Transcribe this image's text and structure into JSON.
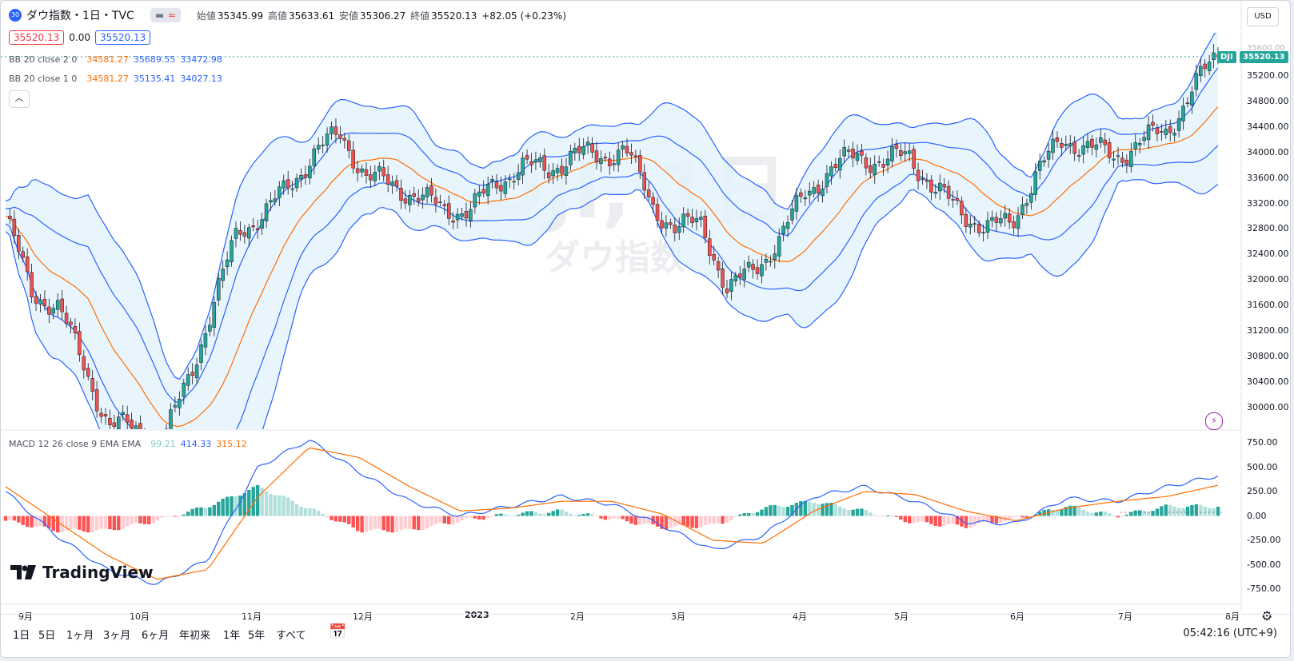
{
  "header": {
    "badge": "30",
    "symbol": "ダウ指数・1日・TVC",
    "ohlc": {
      "open_label": "始値",
      "open": "35345.99",
      "high_label": "高値",
      "high": "35633.61",
      "low_label": "安値",
      "low": "35306.27",
      "close_label": "終値",
      "close": "35520.13",
      "change": "+82.05 (+0.23%)"
    },
    "toggle_icon": "minus-icon",
    "toggle_icon2": "approx-icon",
    "currency": "USD",
    "quote_sell": "35520.13",
    "quote_spread": "0.00",
    "quote_buy": "35520.13"
  },
  "indicators": {
    "bb2": {
      "label": "BB 20 close 2 0",
      "basis": "34581.27",
      "upper": "35689.55",
      "lower": "33472.98"
    },
    "bb1": {
      "label": "BB 20 close 1 0",
      "basis": "34581.27",
      "upper": "35135.41",
      "lower": "34027.13"
    },
    "macd": {
      "label": "MACD 12 26 close 9 EMA EMA",
      "hist": "99.21",
      "macd": "414.33",
      "signal": "315.12"
    }
  },
  "price_axis": [
    "35200.00",
    "34800.00",
    "34400.00",
    "34000.00",
    "33600.00",
    "33200.00",
    "32800.00",
    "32400.00",
    "32000.00",
    "31600.00",
    "31200.00",
    "30800.00",
    "30400.00",
    "30000.00"
  ],
  "price_tag": {
    "symbol": "DJI",
    "value": "35520.13",
    "partial_top": "35600.00"
  },
  "macd_axis": [
    "750.00",
    "500.00",
    "250.00",
    "0.00",
    "-250.00",
    "-500.00",
    "-750.00"
  ],
  "time_axis": [
    "9月",
    "10月",
    "11月",
    "12月",
    "2023",
    "2月",
    "3月",
    "4月",
    "5月",
    "6月",
    "7月",
    "8月"
  ],
  "watermark": {
    "big": "DJI, 1日",
    "small": "ダウ指数"
  },
  "logo": {
    "text": "TradingView"
  },
  "bottombar": {
    "timeframes": [
      "1日",
      "5日",
      "1ヶ月",
      "3ヶ月",
      "6ヶ月",
      "年初来",
      "1年",
      "5年",
      "すべて"
    ],
    "clock": "05:42:16 (UTC+9)"
  },
  "colors": {
    "up": "#26a69a",
    "down": "#ef5350",
    "bb_band": "#2962ff",
    "basis": "#ff6d00",
    "fill": "#e3f2fd"
  },
  "icons": [
    "calendar-range-icon",
    "settings-gear-icon",
    "lightning-icon",
    "chevron-up-icon"
  ],
  "chart_data": [
    {
      "type": "candlestick",
      "title": "ダウ指数・1日・TVC",
      "ylim": [
        29800,
        35700
      ],
      "x_ticks": [
        "9月",
        "10月",
        "11月",
        "12月",
        "2023",
        "2月",
        "3月",
        "4月",
        "5月",
        "6月",
        "7月",
        "8月"
      ],
      "approx_close_path": [
        [
          "8/29",
          33000
        ],
        [
          "9/5",
          31800
        ],
        [
          "9/12",
          31600
        ],
        [
          "9/19",
          30700
        ],
        [
          "9/26",
          29700
        ],
        [
          "10/3",
          29700
        ],
        [
          "10/10",
          29300
        ],
        [
          "10/17",
          30400
        ],
        [
          "10/24",
          31500
        ],
        [
          "10/31",
          32800
        ],
        [
          "11/7",
          33000
        ],
        [
          "11/14",
          33500
        ],
        [
          "11/21",
          34000
        ],
        [
          "11/28",
          34300
        ],
        [
          "12/5",
          33600
        ],
        [
          "12/12",
          33500
        ],
        [
          "12/19",
          33300
        ],
        [
          "12/27",
          33100
        ],
        [
          "1/3",
          33100
        ],
        [
          "1/10",
          33500
        ],
        [
          "1/17",
          33800
        ],
        [
          "1/24",
          33700
        ],
        [
          "1/31",
          34000
        ],
        [
          "2/7",
          33900
        ],
        [
          "2/14",
          34100
        ],
        [
          "2/21",
          33200
        ],
        [
          "2/28",
          32800
        ],
        [
          "3/7",
          32900
        ],
        [
          "3/14",
          31800
        ],
        [
          "3/21",
          32200
        ],
        [
          "3/28",
          32600
        ],
        [
          "4/4",
          33400
        ],
        [
          "4/11",
          33700
        ],
        [
          "4/18",
          34000
        ],
        [
          "4/25",
          33800
        ],
        [
          "5/2",
          34000
        ],
        [
          "5/9",
          33400
        ],
        [
          "5/16",
          33100
        ],
        [
          "5/23",
          32800
        ],
        [
          "5/30",
          32900
        ],
        [
          "6/6",
          33700
        ],
        [
          "6/13",
          34200
        ],
        [
          "6/20",
          34100
        ],
        [
          "6/27",
          33900
        ],
        [
          "7/4",
          34200
        ],
        [
          "7/11",
          34300
        ],
        [
          "7/18",
          35000
        ],
        [
          "7/25",
          35520
        ]
      ],
      "bollinger_2sd_last": {
        "basis": 34581.27,
        "upper": 35689.55,
        "lower": 33472.98
      },
      "bollinger_1sd_last": {
        "basis": 34581.27,
        "upper": 35135.41,
        "lower": 34027.13
      }
    },
    {
      "type": "line",
      "title": "MACD 12 26 close 9 EMA EMA",
      "ylim": [
        -850,
        850
      ],
      "last": {
        "histogram": 99.21,
        "macd": 414.33,
        "signal": 315.12
      },
      "approx_macd": [
        [
          "8/29",
          250
        ],
        [
          "9/12",
          -200
        ],
        [
          "9/26",
          -550
        ],
        [
          "10/10",
          -700
        ],
        [
          "10/24",
          -450
        ],
        [
          "11/7",
          500
        ],
        [
          "11/21",
          780
        ],
        [
          "12/5",
          450
        ],
        [
          "12/19",
          150
        ],
        [
          "1/3",
          0
        ],
        [
          "1/17",
          100
        ],
        [
          "1/31",
          200
        ],
        [
          "2/14",
          120
        ],
        [
          "2/28",
          -100
        ],
        [
          "3/14",
          -350
        ],
        [
          "3/28",
          -200
        ],
        [
          "4/11",
          200
        ],
        [
          "4/25",
          300
        ],
        [
          "5/9",
          150
        ],
        [
          "5/23",
          -60
        ],
        [
          "6/6",
          -80
        ],
        [
          "6/20",
          180
        ],
        [
          "7/4",
          150
        ],
        [
          "7/18",
          300
        ],
        [
          "7/25",
          414
        ]
      ],
      "approx_signal": [
        [
          "8/29",
          300
        ],
        [
          "9/12",
          -50
        ],
        [
          "9/26",
          -400
        ],
        [
          "10/10",
          -650
        ],
        [
          "10/24",
          -550
        ],
        [
          "11/7",
          200
        ],
        [
          "11/21",
          700
        ],
        [
          "12/5",
          600
        ],
        [
          "12/19",
          300
        ],
        [
          "1/3",
          50
        ],
        [
          "1/17",
          80
        ],
        [
          "1/31",
          150
        ],
        [
          "2/14",
          150
        ],
        [
          "2/28",
          20
        ],
        [
          "3/14",
          -250
        ],
        [
          "3/28",
          -280
        ],
        [
          "4/11",
          50
        ],
        [
          "4/25",
          250
        ],
        [
          "5/9",
          220
        ],
        [
          "5/23",
          50
        ],
        [
          "6/6",
          -50
        ],
        [
          "6/20",
          80
        ],
        [
          "7/4",
          150
        ],
        [
          "7/18",
          200
        ],
        [
          "7/25",
          315
        ]
      ]
    }
  ]
}
